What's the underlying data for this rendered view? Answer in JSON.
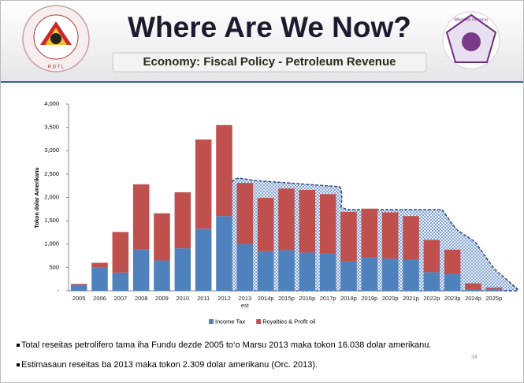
{
  "header": {
    "title": "Where Are We Now?",
    "subtitle": "Economy: Fiscal Policy - Petroleum Revenue",
    "left_logo_text": "R D T L",
    "right_logo_text": "Ministerio Financas"
  },
  "chart_data": {
    "type": "stacked_bar",
    "y_label": "Tokon dolar Amerikanu",
    "categories": [
      "2005",
      "2006",
      "2007",
      "2008",
      "2009",
      "2010",
      "2011",
      "2012",
      "2013 est",
      "2014p",
      "2015p",
      "2016p",
      "2017p",
      "2018p",
      "2019p",
      "2020p",
      "2021p",
      "2022p",
      "2023p",
      "2024p",
      "2025p"
    ],
    "series": [
      {
        "name": "Income Tax",
        "color": "#4f81bd",
        "values": [
          130,
          500,
          390,
          880,
          650,
          910,
          1330,
          1600,
          1000,
          850,
          870,
          820,
          800,
          630,
          720,
          690,
          660,
          400,
          360,
          20,
          40
        ]
      },
      {
        "name": "Royalties & Profit oil",
        "color": "#c0504d",
        "values": [
          20,
          100,
          870,
          1400,
          1010,
          1200,
          1910,
          1950,
          1309,
          1140,
          1320,
          1340,
          1270,
          1060,
          1040,
          990,
          940,
          690,
          520,
          140,
          30
        ]
      }
    ],
    "ylim": [
      0,
      4000
    ],
    "yticks": [
      {
        "value": 0,
        "label": "-"
      },
      500,
      {
        "value": 1000,
        "label": "1,000"
      },
      {
        "value": 1500,
        "label": "1,500"
      },
      {
        "value": 2000,
        "label": "2,000"
      },
      {
        "value": 2500,
        "label": "2,500"
      },
      {
        "value": 3000,
        "label": "3,000"
      },
      {
        "value": 3500,
        "label": "3,500"
      },
      {
        "value": 4000,
        "label": "4,000"
      }
    ],
    "legend": "bottom"
  },
  "notes": [
    "Total reseitas petrolifero tama iha Fundu dezde 2005 to‘o Marsu 2013 maka tokon 16.038 dolar amerikanu.",
    "Estimasaun reseitas ba 2013 maka tokon 2.309 dolar amerikanu (Orc. 2013)."
  ],
  "page_number": "34"
}
